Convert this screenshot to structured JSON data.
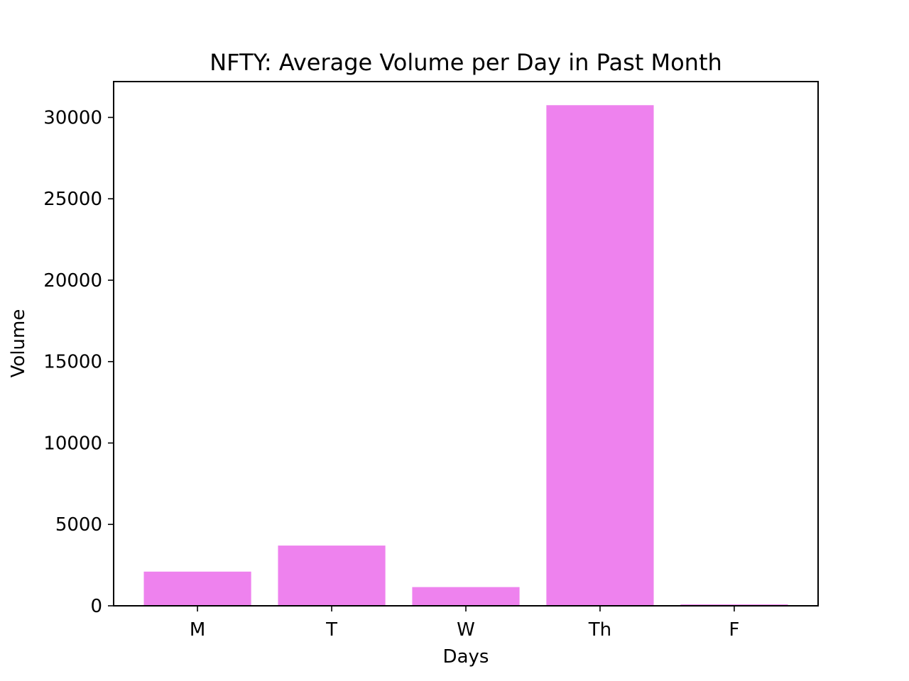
{
  "chart_data": {
    "type": "bar",
    "title": "NFTY: Average Volume per Day in Past Month",
    "xlabel": "Days",
    "ylabel": "Volume",
    "categories": [
      "M",
      "T",
      "W",
      "Th",
      "F"
    ],
    "values": [
      2100,
      3700,
      1150,
      30750,
      90
    ],
    "ylim": [
      0,
      32200
    ],
    "yticks": [
      0,
      5000,
      10000,
      15000,
      20000,
      25000,
      30000
    ],
    "ytick_labels": [
      "0",
      "5000",
      "10000",
      "15000",
      "20000",
      "25000",
      "30000"
    ],
    "grid": false,
    "legend": "none",
    "bar_color": "#ee82ee"
  }
}
